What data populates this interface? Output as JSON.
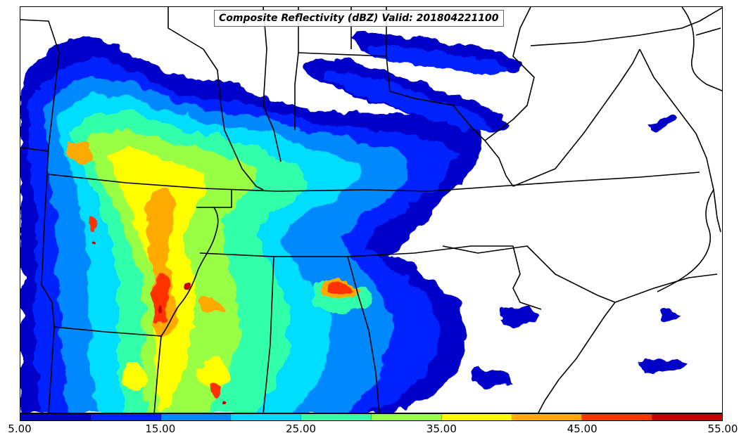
{
  "title": "Composite Reflectivity (dBZ) Valid: 201804221100",
  "colorbar": {
    "colors": [
      "#0000c8",
      "#0022ff",
      "#0088ff",
      "#00ddff",
      "#33ffaa",
      "#99ff44",
      "#ffff00",
      "#ffaa00",
      "#ff3300",
      "#c80000"
    ],
    "tick_labels": [
      "5.00",
      "15.00",
      "25.00",
      "35.00",
      "45.00",
      "55.00"
    ],
    "range_dbz": [
      5,
      55
    ]
  }
}
